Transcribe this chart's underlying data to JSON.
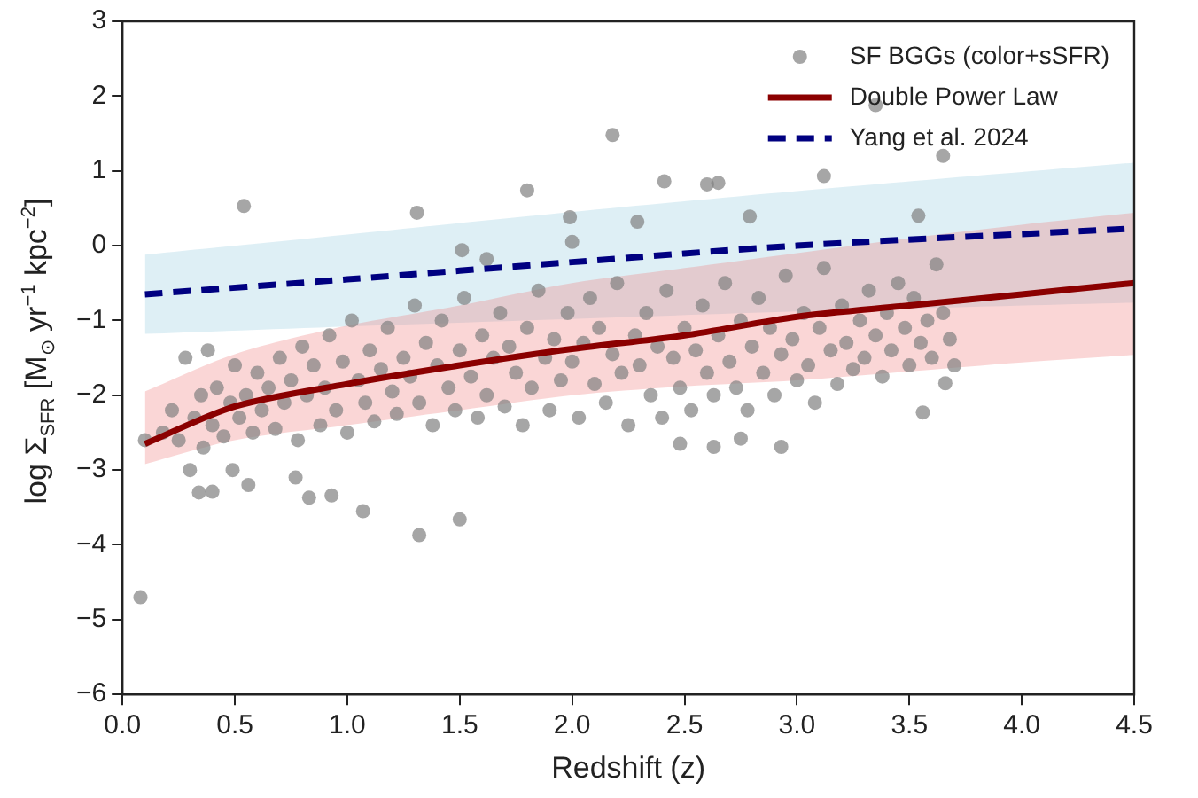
{
  "chart_data": {
    "type": "scatter",
    "xlabel": "Redshift (z)",
    "ylabel": "log Σ$_{SFR}$ [M$_{⊙}$ yr$^{−1}$ kpc$^{−2}$]",
    "xlim": [
      0,
      4.5
    ],
    "ylim": [
      -6,
      3
    ],
    "xticks": [
      {
        "value": 0,
        "label": "0.0"
      },
      {
        "value": 0.5,
        "label": "0.5"
      },
      {
        "value": 1,
        "label": "1.0"
      },
      {
        "value": 1.5,
        "label": "1.5"
      },
      {
        "value": 2,
        "label": "2.0"
      },
      {
        "value": 2.5,
        "label": "2.5"
      },
      {
        "value": 3,
        "label": "3.0"
      },
      {
        "value": 3.5,
        "label": "3.5"
      },
      {
        "value": 4,
        "label": "4.0"
      },
      {
        "value": 4.5,
        "label": "4.5"
      }
    ],
    "yticks": [
      {
        "value": -6,
        "label": "−6"
      },
      {
        "value": -5,
        "label": "−5"
      },
      {
        "value": -4,
        "label": "−4"
      },
      {
        "value": -3,
        "label": "−3"
      },
      {
        "value": -2,
        "label": "−2"
      },
      {
        "value": -1,
        "label": "−1"
      },
      0,
      1,
      2,
      3
    ],
    "grid": false,
    "legend": "top right",
    "marker": "circle",
    "series": [
      {
        "name": "SF BGGs (color+sSFR)",
        "type": "scatter",
        "color": "#808080",
        "x": [
          0.1,
          0.18,
          0.22,
          0.25,
          0.28,
          0.3,
          0.32,
          0.35,
          0.36,
          0.38,
          0.4,
          0.42,
          0.45,
          0.48,
          0.5,
          0.52,
          0.55,
          0.58,
          0.6,
          0.62,
          0.65,
          0.68,
          0.7,
          0.72,
          0.75,
          0.78,
          0.8,
          0.82,
          0.85,
          0.88,
          0.9,
          0.92,
          0.95,
          0.98,
          1.0,
          1.02,
          1.05,
          1.08,
          1.1,
          1.12,
          1.15,
          1.18,
          1.2,
          1.22,
          1.25,
          1.28,
          1.3,
          1.32,
          1.35,
          1.38,
          1.4,
          1.42,
          1.45,
          1.48,
          1.5,
          1.52,
          1.55,
          1.58,
          1.6,
          1.62,
          1.65,
          1.68,
          1.7,
          1.72,
          1.75,
          1.78,
          1.8,
          1.82,
          1.85,
          1.88,
          1.9,
          1.92,
          1.95,
          1.98,
          2.0,
          2.03,
          2.05,
          2.08,
          2.1,
          2.12,
          2.15,
          2.18,
          2.2,
          2.22,
          2.25,
          2.28,
          2.3,
          2.33,
          2.35,
          2.38,
          2.4,
          2.42,
          2.45,
          2.48,
          2.5,
          2.53,
          2.55,
          2.58,
          2.6,
          2.63,
          2.65,
          2.68,
          2.7,
          2.73,
          2.75,
          2.78,
          2.8,
          2.83,
          2.85,
          2.88,
          2.9,
          2.93,
          2.95,
          2.98,
          3.0,
          3.03,
          3.05,
          3.08,
          3.1,
          3.12,
          3.15,
          3.18,
          3.2,
          3.22,
          3.25,
          3.28,
          3.3,
          3.32,
          3.35,
          3.38,
          3.4,
          3.42,
          3.45,
          3.48,
          3.5,
          3.52,
          3.55,
          3.58,
          3.6,
          3.62,
          3.65,
          3.68,
          0.08,
          0.54,
          1.31,
          1.8,
          2.18,
          1.99,
          2.0,
          1.51,
          1.62,
          1.5,
          1.32,
          1.07,
          0.83,
          0.93,
          0.34,
          0.4,
          0.56,
          0.49,
          0.77,
          3.35,
          3.65,
          2.41,
          2.6,
          2.65,
          3.12,
          2.79,
          2.29,
          3.54,
          2.48,
          2.63,
          2.93,
          3.56,
          2.75,
          3.66,
          3.7
        ],
        "values": [
          -2.6,
          -2.5,
          -2.2,
          -2.6,
          -1.5,
          -3.0,
          -2.3,
          -2.0,
          -2.7,
          -1.4,
          -2.4,
          -1.9,
          -2.55,
          -2.1,
          -1.6,
          -2.3,
          -2.0,
          -2.5,
          -1.7,
          -2.2,
          -1.9,
          -2.45,
          -1.5,
          -2.1,
          -1.8,
          -2.6,
          -1.35,
          -2.0,
          -1.6,
          -2.4,
          -1.9,
          -1.2,
          -2.2,
          -1.55,
          -2.5,
          -1.0,
          -1.8,
          -2.1,
          -1.4,
          -2.35,
          -1.65,
          -1.1,
          -1.95,
          -2.25,
          -1.5,
          -1.75,
          -0.8,
          -2.1,
          -1.3,
          -2.4,
          -1.6,
          -1.0,
          -1.9,
          -2.2,
          -1.4,
          -0.7,
          -1.75,
          -2.3,
          -1.2,
          -2.0,
          -1.5,
          -0.9,
          -2.15,
          -1.35,
          -1.7,
          -2.4,
          -1.1,
          -1.9,
          -0.6,
          -1.5,
          -2.2,
          -1.25,
          -1.8,
          -0.9,
          -1.55,
          -2.3,
          -1.3,
          -0.7,
          -1.85,
          -1.1,
          -2.1,
          -1.45,
          -0.5,
          -1.7,
          -2.4,
          -1.2,
          -1.6,
          -0.9,
          -2.0,
          -1.35,
          -2.3,
          -0.6,
          -1.5,
          -1.9,
          -1.1,
          -2.2,
          -1.4,
          -0.8,
          -1.7,
          -2.0,
          -1.2,
          -0.5,
          -1.55,
          -1.9,
          -1.0,
          -2.2,
          -1.35,
          -0.7,
          -1.7,
          -1.1,
          -2.0,
          -1.45,
          -0.4,
          -1.25,
          -1.8,
          -0.9,
          -1.6,
          -2.1,
          -1.1,
          -0.3,
          -1.4,
          -1.85,
          -0.8,
          -1.3,
          -1.65,
          -1.0,
          -1.5,
          -0.6,
          -1.2,
          -1.75,
          -0.9,
          -1.4,
          -0.5,
          -1.1,
          -1.6,
          -0.7,
          -1.3,
          -1.0,
          -1.5,
          -0.25,
          -0.9,
          -1.25,
          -4.7,
          0.53,
          0.44,
          0.74,
          1.48,
          0.38,
          0.05,
          -0.06,
          -0.18,
          -3.66,
          -3.87,
          -3.55,
          -3.37,
          -3.34,
          -3.3,
          -3.29,
          -3.2,
          -3.0,
          -3.1,
          1.88,
          1.2,
          0.86,
          0.82,
          0.84,
          0.93,
          0.39,
          0.32,
          0.4,
          -2.65,
          -2.69,
          -2.69,
          -2.23,
          -2.58,
          -1.84,
          -1.6
        ]
      },
      {
        "name": "Double Power Law",
        "type": "line",
        "color": "#8b0000",
        "line_style": "solid",
        "marker": "none",
        "x": [
          0.1,
          0.5,
          1.0,
          1.5,
          2.0,
          2.5,
          3.0,
          3.5,
          4.0,
          4.5
        ],
        "values": [
          -2.65,
          -2.15,
          -1.85,
          -1.6,
          -1.38,
          -1.2,
          -0.95,
          -0.8,
          -0.65,
          -0.5
        ],
        "lower": [
          -2.92,
          -2.6,
          -2.4,
          -2.2,
          -2.0,
          -1.88,
          -1.8,
          -1.68,
          -1.56,
          -1.46
        ],
        "upper": [
          -1.95,
          -1.45,
          -1.07,
          -0.8,
          -0.5,
          -0.3,
          -0.1,
          0.1,
          0.28,
          0.44
        ]
      },
      {
        "name": "Yang et al. 2024",
        "type": "line",
        "color": "#000080",
        "line_style": "dashed",
        "marker": "none",
        "x": [
          0.1,
          1.0,
          2.0,
          3.0,
          4.5
        ],
        "values": [
          -0.65,
          -0.45,
          -0.22,
          0.0,
          0.23
        ],
        "lower": [
          -1.18,
          -1.08,
          -0.98,
          -0.88,
          -0.76
        ],
        "upper": [
          -0.12,
          0.15,
          0.45,
          0.73,
          1.11
        ]
      }
    ]
  }
}
